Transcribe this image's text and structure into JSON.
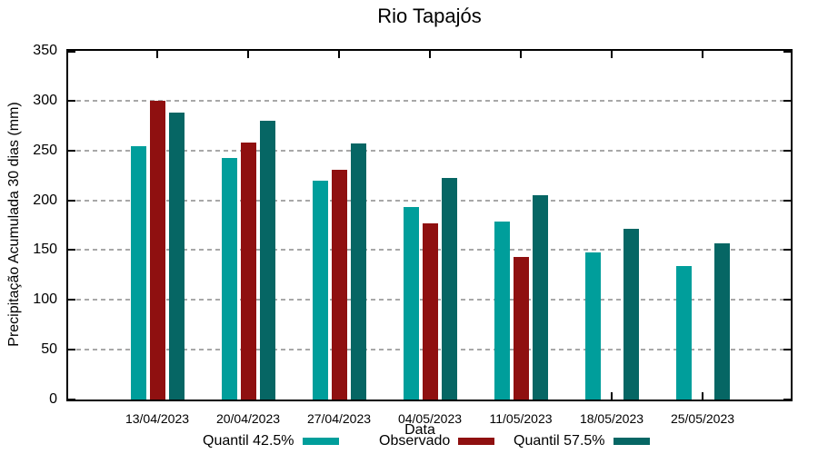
{
  "chart_data": {
    "type": "bar",
    "title": "Rio Tapajós",
    "xlabel": "Data",
    "ylabel": "Precipitação Acumulada 30 dias (mm)",
    "ylim": [
      0,
      350
    ],
    "yticks": [
      0,
      50,
      100,
      150,
      200,
      250,
      300,
      350
    ],
    "grid": "horizontal dashed gridlines at each 50 mm tick",
    "grid_color": "#a8a8a8",
    "legend_position": "bottom, below x-axis title",
    "categories": [
      "13/04/2023",
      "20/04/2023",
      "27/04/2023",
      "04/05/2023",
      "11/05/2023",
      "18/05/2023",
      "25/05/2023"
    ],
    "series": [
      {
        "name": "Quantil 42.5%",
        "color": "#009e9b",
        "values": [
          254,
          242,
          220,
          193,
          179,
          148,
          134
        ]
      },
      {
        "name": "Observado",
        "color": "#8f1010",
        "values": [
          300,
          258,
          231,
          177,
          143,
          null,
          null
        ]
      },
      {
        "name": "Quantil 57.5%",
        "color": "#066664",
        "values": [
          288,
          280,
          257,
          222,
          205,
          171,
          157
        ]
      }
    ]
  }
}
